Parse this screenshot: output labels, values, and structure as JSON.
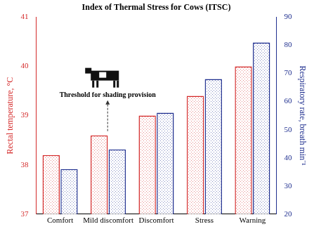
{
  "chart_data": {
    "type": "bar",
    "title": "Index of Thermal Stress for Cows (ITSC)",
    "categories": [
      "Comfort",
      "Mild discomfort",
      "Discomfort",
      "Stress",
      "Warning"
    ],
    "y_label": "Rectal temperature, °C",
    "y2_label": "Respiratory rate, breath min⁻¹",
    "series": [
      {
        "color": "#d42a2a",
        "values": [
          38.2,
          38.6,
          39.0,
          39.4,
          40.0
        ]
      },
      {
        "color": "#1f2f8f",
        "axis": "y2",
        "values": [
          36,
          43,
          56,
          68,
          81
        ]
      }
    ],
    "ylim": [
      37,
      41
    ],
    "yticks": [
      37,
      38,
      39,
      40,
      41
    ],
    "y2lim": [
      20,
      90
    ],
    "y2ticks": [
      20,
      30,
      40,
      50,
      60,
      70,
      80,
      90
    ],
    "grid": false,
    "annotations": [
      {
        "text": "Threshold for shading provision",
        "category": "Mild discomfort"
      }
    ]
  }
}
